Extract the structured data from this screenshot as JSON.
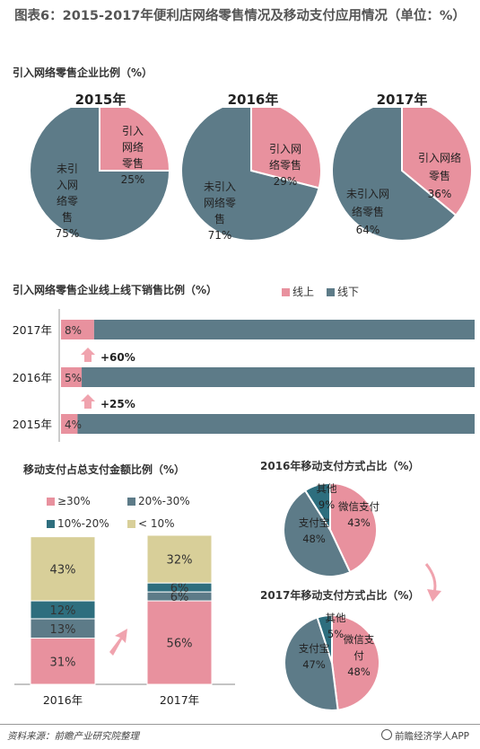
{
  "title": "图表6：2015-2017年便利店网络零售情况及移动支付应用情况（单位：%）",
  "colors": {
    "pink": "#E8919E",
    "slate": "#5D7B88",
    "teal": "#2E6E7E",
    "khaki": "#D8CF99",
    "arrow": "#F0A3AE"
  },
  "section1": {
    "title": "引入网络零售企业比例（%）",
    "pies": [
      {
        "year": "2015年",
        "slices": [
          {
            "label": "引入网络零售",
            "value": 25
          },
          {
            "label": "未引入网络零售",
            "value": 75
          }
        ],
        "text_in": [
          "引入",
          "网络",
          "零售",
          "25%"
        ],
        "text_out": [
          "未引",
          "入网",
          "络零",
          "售",
          "75%"
        ]
      },
      {
        "year": "2016年",
        "slices": [
          {
            "label": "引入网络零售",
            "value": 29
          },
          {
            "label": "未引入网络零售",
            "value": 71
          }
        ],
        "text_in": [
          "引入网",
          "络零售",
          "29%"
        ],
        "text_out": [
          "未引入",
          "网络零",
          "售",
          "71%"
        ]
      },
      {
        "year": "2017年",
        "slices": [
          {
            "label": "引入网络零售",
            "value": 36
          },
          {
            "label": "未引入网络零售",
            "value": 64
          }
        ],
        "text_in": [
          "引入网络",
          "零售",
          "36%"
        ],
        "text_out": [
          "未引入网",
          "络零售",
          "64%"
        ]
      }
    ]
  },
  "section2": {
    "title": "引入网络零售企业线上线下销售比例（%）",
    "legend": [
      "线上",
      "线下"
    ],
    "rows": [
      {
        "year": "2017年",
        "online": 8,
        "offline": 92,
        "label": "8%"
      },
      {
        "year": "2016年",
        "online": 5,
        "offline": 95,
        "label": "5%"
      },
      {
        "year": "2015年",
        "online": 4,
        "offline": 96,
        "label": "4%"
      }
    ],
    "growth": [
      "+60%",
      "+25%"
    ]
  },
  "section3": {
    "title": "移动支付占总支付金额比例（%）",
    "legend": [
      "≥30%",
      "20%-30%",
      "10%-20%",
      "< 10%"
    ],
    "bars": [
      {
        "year": "2016年",
        "segments": [
          {
            "cat": "≥30%",
            "value": 31,
            "label": "31%"
          },
          {
            "cat": "20%-30%",
            "value": 13,
            "label": "13%"
          },
          {
            "cat": "10%-20%",
            "value": 12,
            "label": "12%"
          },
          {
            "cat": "< 10%",
            "value": 43,
            "label": "43%"
          }
        ]
      },
      {
        "year": "2017年",
        "segments": [
          {
            "cat": "≥30%",
            "value": 56,
            "label": "56%"
          },
          {
            "cat": "20%-30%",
            "value": 6,
            "label": "6%"
          },
          {
            "cat": "10%-20%",
            "value": 6,
            "label": "6%"
          },
          {
            "cat": "< 10%",
            "value": 32,
            "label": "32%"
          }
        ]
      }
    ]
  },
  "section4": {
    "pies": [
      {
        "title": "2016年移动支付方式占比（%）",
        "slices": [
          {
            "label": "微信支付",
            "value": 43
          },
          {
            "label": "支付宝",
            "value": 48
          },
          {
            "label": "其他",
            "value": 9
          }
        ],
        "texts": {
          "wechat": [
            "微信支付",
            "43%"
          ],
          "alipay": [
            "支付宝",
            "48%"
          ],
          "other": [
            "其他",
            "9%"
          ]
        }
      },
      {
        "title": "2017年移动支付方式占比（%）",
        "slices": [
          {
            "label": "微信支付",
            "value": 48
          },
          {
            "label": "支付宝",
            "value": 47
          },
          {
            "label": "其他",
            "value": 5
          }
        ],
        "texts": {
          "wechat": [
            "微信支",
            "付",
            "48%"
          ],
          "alipay": [
            "支付宝",
            "47%"
          ],
          "other": [
            "其他",
            "5%"
          ]
        }
      }
    ]
  },
  "chart_data": [
    {
      "type": "pie",
      "title": "2015年",
      "labels": [
        "引入网络零售",
        "未引入网络零售"
      ],
      "values": [
        25,
        75
      ]
    },
    {
      "type": "pie",
      "title": "2016年",
      "labels": [
        "引入网络零售",
        "未引入网络零售"
      ],
      "values": [
        29,
        71
      ]
    },
    {
      "type": "pie",
      "title": "2017年",
      "labels": [
        "引入网络零售",
        "未引入网络零售"
      ],
      "values": [
        36,
        64
      ]
    },
    {
      "type": "bar",
      "title": "引入网络零售企业线上线下销售比例（%）",
      "categories": [
        "2017年",
        "2016年",
        "2015年"
      ],
      "series": [
        {
          "name": "线上",
          "values": [
            8,
            5,
            4
          ]
        },
        {
          "name": "线下",
          "values": [
            92,
            95,
            96
          ]
        }
      ]
    },
    {
      "type": "bar",
      "title": "移动支付占总支付金额比例（%）",
      "categories": [
        "2016年",
        "2017年"
      ],
      "series": [
        {
          "name": "≥30%",
          "values": [
            31,
            56
          ]
        },
        {
          "name": "20%-30%",
          "values": [
            13,
            6
          ]
        },
        {
          "name": "10%-20%",
          "values": [
            12,
            6
          ]
        },
        {
          "name": "< 10%",
          "values": [
            43,
            32
          ]
        }
      ]
    },
    {
      "type": "pie",
      "title": "2016年移动支付方式占比（%）",
      "labels": [
        "微信支付",
        "支付宝",
        "其他"
      ],
      "values": [
        43,
        48,
        9
      ]
    },
    {
      "type": "pie",
      "title": "2017年移动支付方式占比（%）",
      "labels": [
        "微信支付",
        "支付宝",
        "其他"
      ],
      "values": [
        48,
        47,
        5
      ]
    }
  ],
  "footer": {
    "source": "资料来源：前瞻产业研究院整理",
    "brand": "前瞻经济学人APP"
  }
}
